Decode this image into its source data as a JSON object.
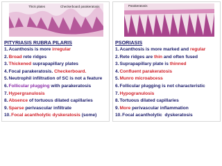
{
  "left": {
    "image_labels": [
      "Thick plates",
      "Checkerboard parakeratosis"
    ],
    "title": "PITYRIASIS RUBRA PILARIS",
    "items": [
      {
        "number": "1.",
        "parts": [
          {
            "text": "Acanthosis is more ",
            "color": "#1a1a6a"
          },
          {
            "text": "irregular",
            "color": "#d0202a"
          }
        ]
      },
      {
        "number": "2.",
        "parts": [
          {
            "text": "Broad",
            "color": "#d0202a"
          },
          {
            "text": " rete ridges",
            "color": "#1a1a6a"
          }
        ]
      },
      {
        "number": "3.",
        "parts": [
          {
            "text": "Thickened",
            "color": "#d0202a"
          },
          {
            "text": " suprapapillary plates",
            "color": "#1a1a6a"
          }
        ]
      },
      {
        "number": "4.",
        "parts": [
          {
            "text": "Focal parakeratosis. ",
            "color": "#1a1a6a"
          },
          {
            "text": "Checkerboard.",
            "color": "#d0202a"
          }
        ]
      },
      {
        "number": "5.",
        "parts": [
          {
            "text": "Neutrophil infiltration of SC is not a feature",
            "color": "#1a1a6a"
          }
        ]
      },
      {
        "number": "6.",
        "parts": [
          {
            "text": "Follicular plugging",
            "color": "#8a2aa8"
          },
          {
            "text": " with parakeratosis",
            "color": "#1a1a6a"
          }
        ]
      },
      {
        "number": "7.",
        "parts": [
          {
            "text": "Hypergranulosis",
            "color": "#d0202a"
          }
        ]
      },
      {
        "number": "8.",
        "parts": [
          {
            "text": "Absence",
            "color": "#d0202a"
          },
          {
            "text": " of tortuous dilated capillaries",
            "color": "#1a1a6a"
          }
        ]
      },
      {
        "number": "9.",
        "parts": [
          {
            "text": "Sparse",
            "color": "#d0202a"
          },
          {
            "text": " perivascular infiltrate",
            "color": "#1a1a6a"
          }
        ]
      },
      {
        "number": "10.",
        "parts": [
          {
            "text": "Focal acantholytic dyskeratosis",
            "color": "#d0202a"
          },
          {
            "text": " (some)",
            "color": "#1a1a6a"
          }
        ]
      }
    ]
  },
  "right": {
    "image_labels": [
      "Parakeratosis"
    ],
    "title": "PSORIASIS",
    "items": [
      {
        "number": "1.",
        "parts": [
          {
            "text": "Acanthosis is more marked and ",
            "color": "#1a1a6a"
          },
          {
            "text": "regular",
            "color": "#d0202a"
          }
        ]
      },
      {
        "number": "2.",
        "parts": [
          {
            "text": "Rete ridges are ",
            "color": "#1a1a6a"
          },
          {
            "text": "thin",
            "color": "#d0202a"
          },
          {
            "text": " and often fused",
            "color": "#1a1a6a"
          }
        ]
      },
      {
        "number": "3.",
        "parts": [
          {
            "text": "Suprapapillary plate is ",
            "color": "#1a1a6a"
          },
          {
            "text": "thinned",
            "color": "#d0202a"
          }
        ]
      },
      {
        "number": "4.",
        "parts": [
          {
            "text": "Confluent parakeratosis",
            "color": "#d0202a"
          }
        ]
      },
      {
        "number": "5.",
        "parts": [
          {
            "text": "Munro microabcess",
            "color": "#d0202a"
          }
        ]
      },
      {
        "number": "6.",
        "parts": [
          {
            "text": "Follicular plugging is not characteristic",
            "color": "#1a1a6a"
          }
        ]
      },
      {
        "number": "7.",
        "parts": [
          {
            "text": "Hypogranulosis",
            "color": "#d0202a"
          }
        ]
      },
      {
        "number": "8.",
        "parts": [
          {
            "text": "Tortuous dilated capillaries",
            "color": "#1a1a6a"
          }
        ]
      },
      {
        "number": "9.",
        "parts": [
          {
            "text": "More",
            "color": "#d0202a"
          },
          {
            "text": " perivascular inflammation",
            "color": "#1a1a6a"
          }
        ]
      },
      {
        "number": "10.",
        "parts": [
          {
            "text": "Focal acantholytic  dyskeratosis",
            "color": "#1a1a6a"
          }
        ]
      }
    ]
  }
}
